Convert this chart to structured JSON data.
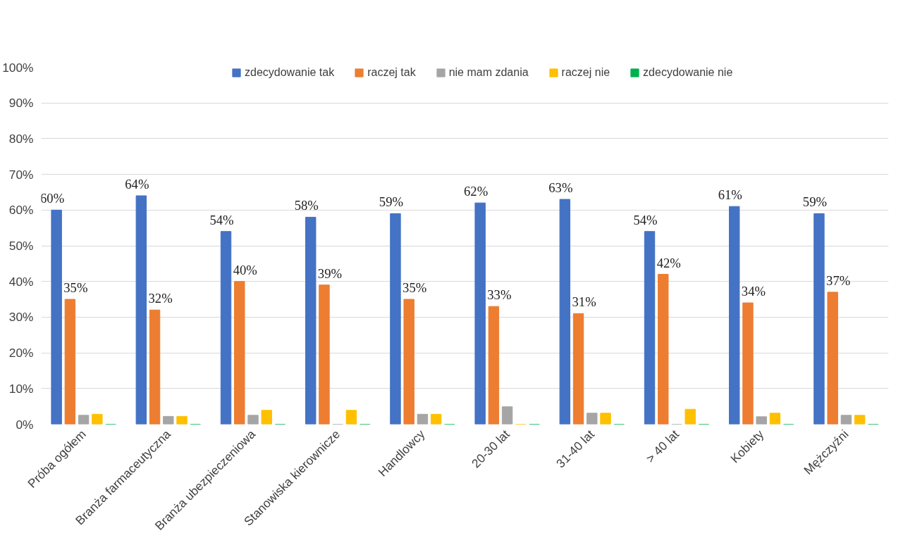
{
  "chart_data": {
    "type": "bar",
    "categories": [
      "Próba ogółem",
      "Branża farmaceutyczna",
      "Branża ubezpieczeniowa",
      "Stanowiska kierownicze",
      "Handlowcy",
      "20-30 lat",
      "31-40 lat",
      "> 40 lat",
      "Kobiety",
      "Mężczyźni"
    ],
    "series": [
      {
        "name": "zdecydowanie tak",
        "color": "#4472c4",
        "values": [
          60,
          64,
          54,
          58,
          59,
          62,
          63,
          54,
          61,
          59
        ],
        "value_labels": [
          "60%",
          "64%",
          "54%",
          "58%",
          "59%",
          "62%",
          "63%",
          "54%",
          "61%",
          "59%"
        ]
      },
      {
        "name": "raczej tak",
        "color": "#ed7d31",
        "values": [
          35,
          32,
          40,
          39,
          35,
          33,
          31,
          42,
          34,
          37
        ],
        "value_labels": [
          "35%",
          "32%",
          "40%",
          "39%",
          "35%",
          "33%",
          "31%",
          "42%",
          "34%",
          "37%"
        ]
      },
      {
        "name": "nie mam zdania",
        "color": "#a5a5a5",
        "values": [
          2.5,
          2.2,
          2.5,
          0,
          2.8,
          4.9,
          3.1,
          0,
          2.1,
          2.5
        ]
      },
      {
        "name": "raczej nie",
        "color": "#ffc000",
        "values": [
          2.8,
          2.2,
          3.9,
          3.9,
          2.8,
          0,
          3.1,
          4.2,
          3.1,
          2.5
        ]
      },
      {
        "name": "zdecydowanie nie",
        "color": "#00b050",
        "values": [
          0,
          0,
          0,
          0,
          0,
          0,
          0,
          0,
          0,
          0
        ]
      }
    ],
    "ylim": [
      0,
      100
    ],
    "yticks": [
      {
        "value": 0,
        "label": "0%"
      },
      {
        "value": 10,
        "label": "10%"
      },
      {
        "value": 20,
        "label": "20%"
      },
      {
        "value": 30,
        "label": "30%"
      },
      {
        "value": 40,
        "label": "40%"
      },
      {
        "value": 50,
        "label": "50%"
      },
      {
        "value": 60,
        "label": "60%"
      },
      {
        "value": 70,
        "label": "70%"
      },
      {
        "value": 80,
        "label": "80%"
      },
      {
        "value": 90,
        "label": "90%"
      },
      {
        "value": 100,
        "label": "100%"
      }
    ],
    "grid": "y",
    "legend": "top"
  }
}
